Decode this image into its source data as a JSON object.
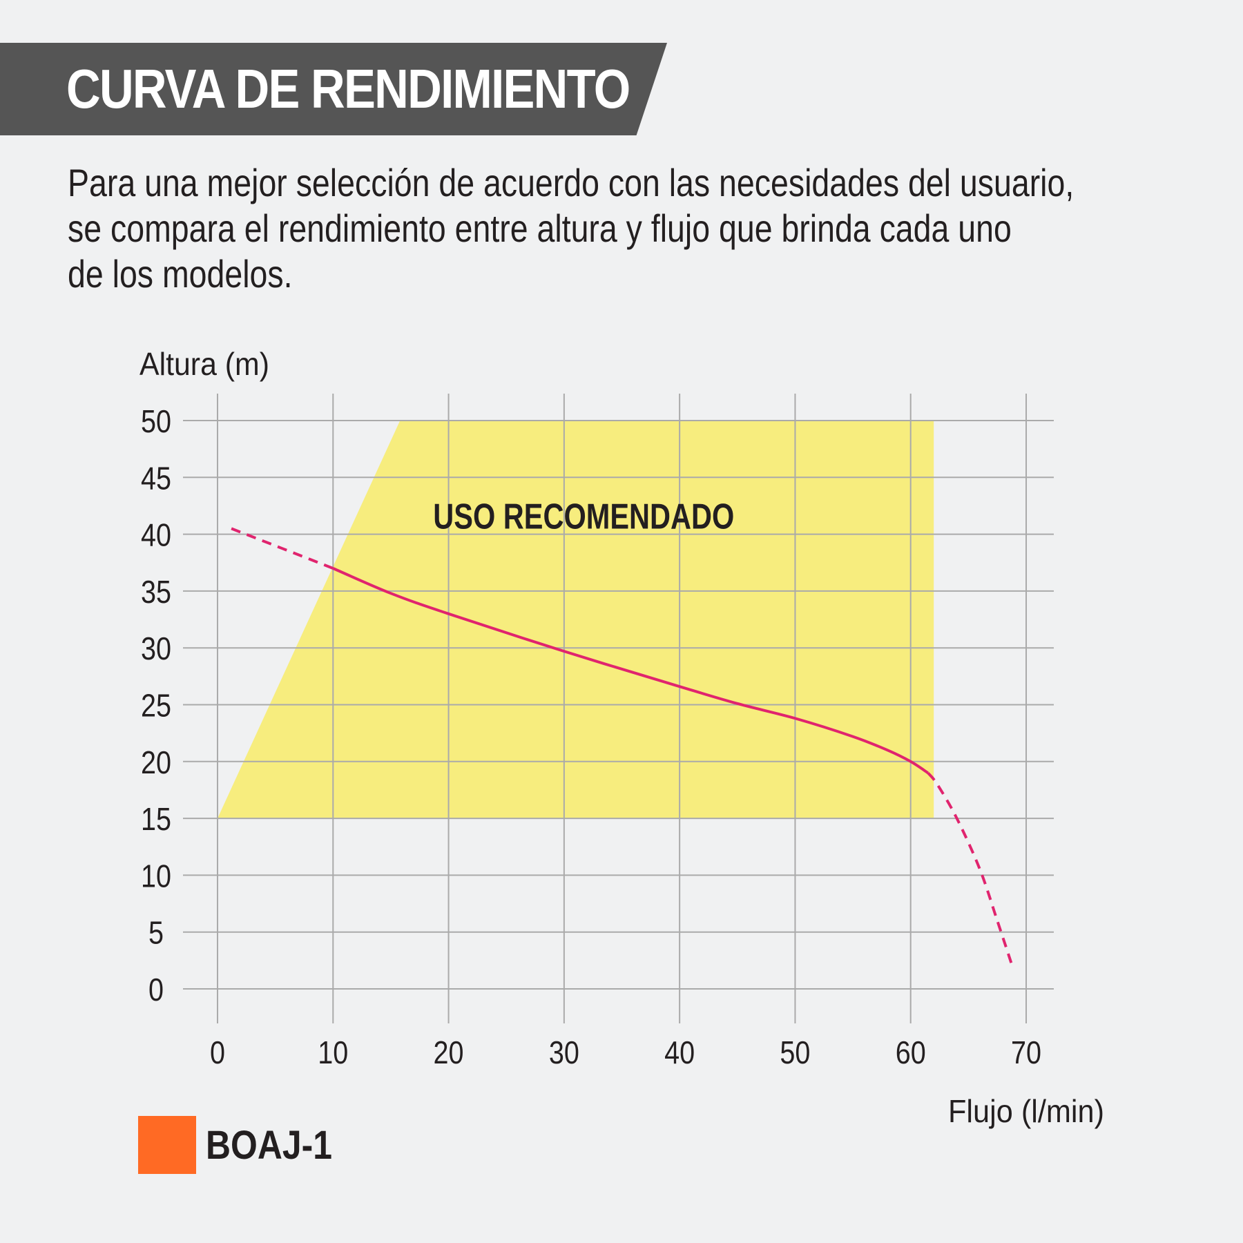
{
  "header": {
    "title": "CURVA DE RENDIMIENTO"
  },
  "intro": {
    "lines": [
      "Para una mejor selección de acuerdo con las necesidades del usuario,",
      "se compara el rendimiento entre altura y flujo que brinda cada uno",
      "de los modelos."
    ]
  },
  "colors": {
    "banner": "#555555",
    "background": "#f0f1f2",
    "grid": "#aaaaaa",
    "recommended_zone": "#f7ed7e",
    "curve": "#e0246e",
    "legend_swatch": "#ff6a24"
  },
  "chart_data": {
    "type": "line",
    "xlabel": "Flujo (l/min)",
    "ylabel": "Altura (m)",
    "xlim": [
      0,
      70
    ],
    "ylim": [
      0,
      50
    ],
    "xticks": [
      0,
      10,
      20,
      30,
      40,
      50,
      60,
      70
    ],
    "yticks": [
      0,
      5,
      10,
      15,
      20,
      25,
      30,
      35,
      40,
      45,
      50
    ],
    "grid": true,
    "recommended_zone": {
      "label": "USO RECOMENDADO",
      "polygon": [
        [
          0,
          15
        ],
        [
          15.8,
          50
        ],
        [
          62,
          50
        ],
        [
          62,
          15
        ]
      ]
    },
    "series": [
      {
        "name": "BOAJ-1",
        "solid": [
          [
            10,
            37
          ],
          [
            15,
            34.8
          ],
          [
            20,
            33
          ],
          [
            30,
            29.7
          ],
          [
            40,
            26.6
          ],
          [
            45,
            25.1
          ],
          [
            50,
            23.8
          ],
          [
            55,
            22.2
          ],
          [
            58,
            21
          ],
          [
            60,
            20
          ],
          [
            61.5,
            19
          ]
        ],
        "dashed_start": [
          [
            1.2,
            40.5
          ],
          [
            10,
            37
          ]
        ],
        "dashed_end": [
          [
            61.5,
            19
          ],
          [
            62.3,
            18
          ],
          [
            64,
            15
          ],
          [
            66,
            10.5
          ],
          [
            67.5,
            6
          ],
          [
            68.8,
            2
          ]
        ]
      }
    ],
    "legend": [
      {
        "label": "BOAJ-1",
        "color": "#ff6a24"
      }
    ]
  }
}
